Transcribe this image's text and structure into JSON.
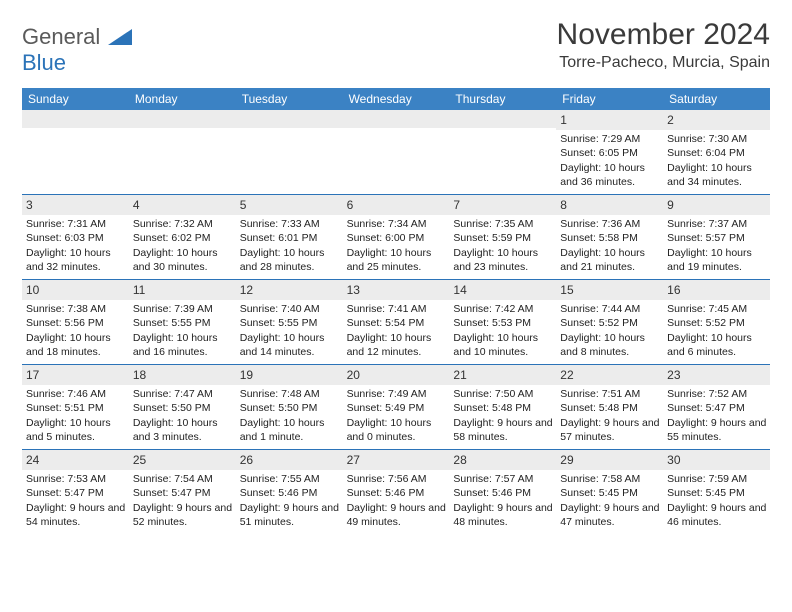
{
  "logo": {
    "text1": "General",
    "text2": "Blue"
  },
  "title": "November 2024",
  "location": "Torre-Pacheco, Murcia, Spain",
  "colors": {
    "header_bar": "#3b82c4",
    "day_num_bg": "#ececec",
    "row_border": "#2b73b8",
    "text": "#222222",
    "logo_gray": "#5a5a5a",
    "logo_blue": "#2b73b8"
  },
  "dow": [
    "Sunday",
    "Monday",
    "Tuesday",
    "Wednesday",
    "Thursday",
    "Friday",
    "Saturday"
  ],
  "weeks": [
    [
      {
        "n": "",
        "sr": "",
        "ss": "",
        "dl": ""
      },
      {
        "n": "",
        "sr": "",
        "ss": "",
        "dl": ""
      },
      {
        "n": "",
        "sr": "",
        "ss": "",
        "dl": ""
      },
      {
        "n": "",
        "sr": "",
        "ss": "",
        "dl": ""
      },
      {
        "n": "",
        "sr": "",
        "ss": "",
        "dl": ""
      },
      {
        "n": "1",
        "sr": "Sunrise: 7:29 AM",
        "ss": "Sunset: 6:05 PM",
        "dl": "Daylight: 10 hours and 36 minutes."
      },
      {
        "n": "2",
        "sr": "Sunrise: 7:30 AM",
        "ss": "Sunset: 6:04 PM",
        "dl": "Daylight: 10 hours and 34 minutes."
      }
    ],
    [
      {
        "n": "3",
        "sr": "Sunrise: 7:31 AM",
        "ss": "Sunset: 6:03 PM",
        "dl": "Daylight: 10 hours and 32 minutes."
      },
      {
        "n": "4",
        "sr": "Sunrise: 7:32 AM",
        "ss": "Sunset: 6:02 PM",
        "dl": "Daylight: 10 hours and 30 minutes."
      },
      {
        "n": "5",
        "sr": "Sunrise: 7:33 AM",
        "ss": "Sunset: 6:01 PM",
        "dl": "Daylight: 10 hours and 28 minutes."
      },
      {
        "n": "6",
        "sr": "Sunrise: 7:34 AM",
        "ss": "Sunset: 6:00 PM",
        "dl": "Daylight: 10 hours and 25 minutes."
      },
      {
        "n": "7",
        "sr": "Sunrise: 7:35 AM",
        "ss": "Sunset: 5:59 PM",
        "dl": "Daylight: 10 hours and 23 minutes."
      },
      {
        "n": "8",
        "sr": "Sunrise: 7:36 AM",
        "ss": "Sunset: 5:58 PM",
        "dl": "Daylight: 10 hours and 21 minutes."
      },
      {
        "n": "9",
        "sr": "Sunrise: 7:37 AM",
        "ss": "Sunset: 5:57 PM",
        "dl": "Daylight: 10 hours and 19 minutes."
      }
    ],
    [
      {
        "n": "10",
        "sr": "Sunrise: 7:38 AM",
        "ss": "Sunset: 5:56 PM",
        "dl": "Daylight: 10 hours and 18 minutes."
      },
      {
        "n": "11",
        "sr": "Sunrise: 7:39 AM",
        "ss": "Sunset: 5:55 PM",
        "dl": "Daylight: 10 hours and 16 minutes."
      },
      {
        "n": "12",
        "sr": "Sunrise: 7:40 AM",
        "ss": "Sunset: 5:55 PM",
        "dl": "Daylight: 10 hours and 14 minutes."
      },
      {
        "n": "13",
        "sr": "Sunrise: 7:41 AM",
        "ss": "Sunset: 5:54 PM",
        "dl": "Daylight: 10 hours and 12 minutes."
      },
      {
        "n": "14",
        "sr": "Sunrise: 7:42 AM",
        "ss": "Sunset: 5:53 PM",
        "dl": "Daylight: 10 hours and 10 minutes."
      },
      {
        "n": "15",
        "sr": "Sunrise: 7:44 AM",
        "ss": "Sunset: 5:52 PM",
        "dl": "Daylight: 10 hours and 8 minutes."
      },
      {
        "n": "16",
        "sr": "Sunrise: 7:45 AM",
        "ss": "Sunset: 5:52 PM",
        "dl": "Daylight: 10 hours and 6 minutes."
      }
    ],
    [
      {
        "n": "17",
        "sr": "Sunrise: 7:46 AM",
        "ss": "Sunset: 5:51 PM",
        "dl": "Daylight: 10 hours and 5 minutes."
      },
      {
        "n": "18",
        "sr": "Sunrise: 7:47 AM",
        "ss": "Sunset: 5:50 PM",
        "dl": "Daylight: 10 hours and 3 minutes."
      },
      {
        "n": "19",
        "sr": "Sunrise: 7:48 AM",
        "ss": "Sunset: 5:50 PM",
        "dl": "Daylight: 10 hours and 1 minute."
      },
      {
        "n": "20",
        "sr": "Sunrise: 7:49 AM",
        "ss": "Sunset: 5:49 PM",
        "dl": "Daylight: 10 hours and 0 minutes."
      },
      {
        "n": "21",
        "sr": "Sunrise: 7:50 AM",
        "ss": "Sunset: 5:48 PM",
        "dl": "Daylight: 9 hours and 58 minutes."
      },
      {
        "n": "22",
        "sr": "Sunrise: 7:51 AM",
        "ss": "Sunset: 5:48 PM",
        "dl": "Daylight: 9 hours and 57 minutes."
      },
      {
        "n": "23",
        "sr": "Sunrise: 7:52 AM",
        "ss": "Sunset: 5:47 PM",
        "dl": "Daylight: 9 hours and 55 minutes."
      }
    ],
    [
      {
        "n": "24",
        "sr": "Sunrise: 7:53 AM",
        "ss": "Sunset: 5:47 PM",
        "dl": "Daylight: 9 hours and 54 minutes."
      },
      {
        "n": "25",
        "sr": "Sunrise: 7:54 AM",
        "ss": "Sunset: 5:47 PM",
        "dl": "Daylight: 9 hours and 52 minutes."
      },
      {
        "n": "26",
        "sr": "Sunrise: 7:55 AM",
        "ss": "Sunset: 5:46 PM",
        "dl": "Daylight: 9 hours and 51 minutes."
      },
      {
        "n": "27",
        "sr": "Sunrise: 7:56 AM",
        "ss": "Sunset: 5:46 PM",
        "dl": "Daylight: 9 hours and 49 minutes."
      },
      {
        "n": "28",
        "sr": "Sunrise: 7:57 AM",
        "ss": "Sunset: 5:46 PM",
        "dl": "Daylight: 9 hours and 48 minutes."
      },
      {
        "n": "29",
        "sr": "Sunrise: 7:58 AM",
        "ss": "Sunset: 5:45 PM",
        "dl": "Daylight: 9 hours and 47 minutes."
      },
      {
        "n": "30",
        "sr": "Sunrise: 7:59 AM",
        "ss": "Sunset: 5:45 PM",
        "dl": "Daylight: 9 hours and 46 minutes."
      }
    ]
  ]
}
